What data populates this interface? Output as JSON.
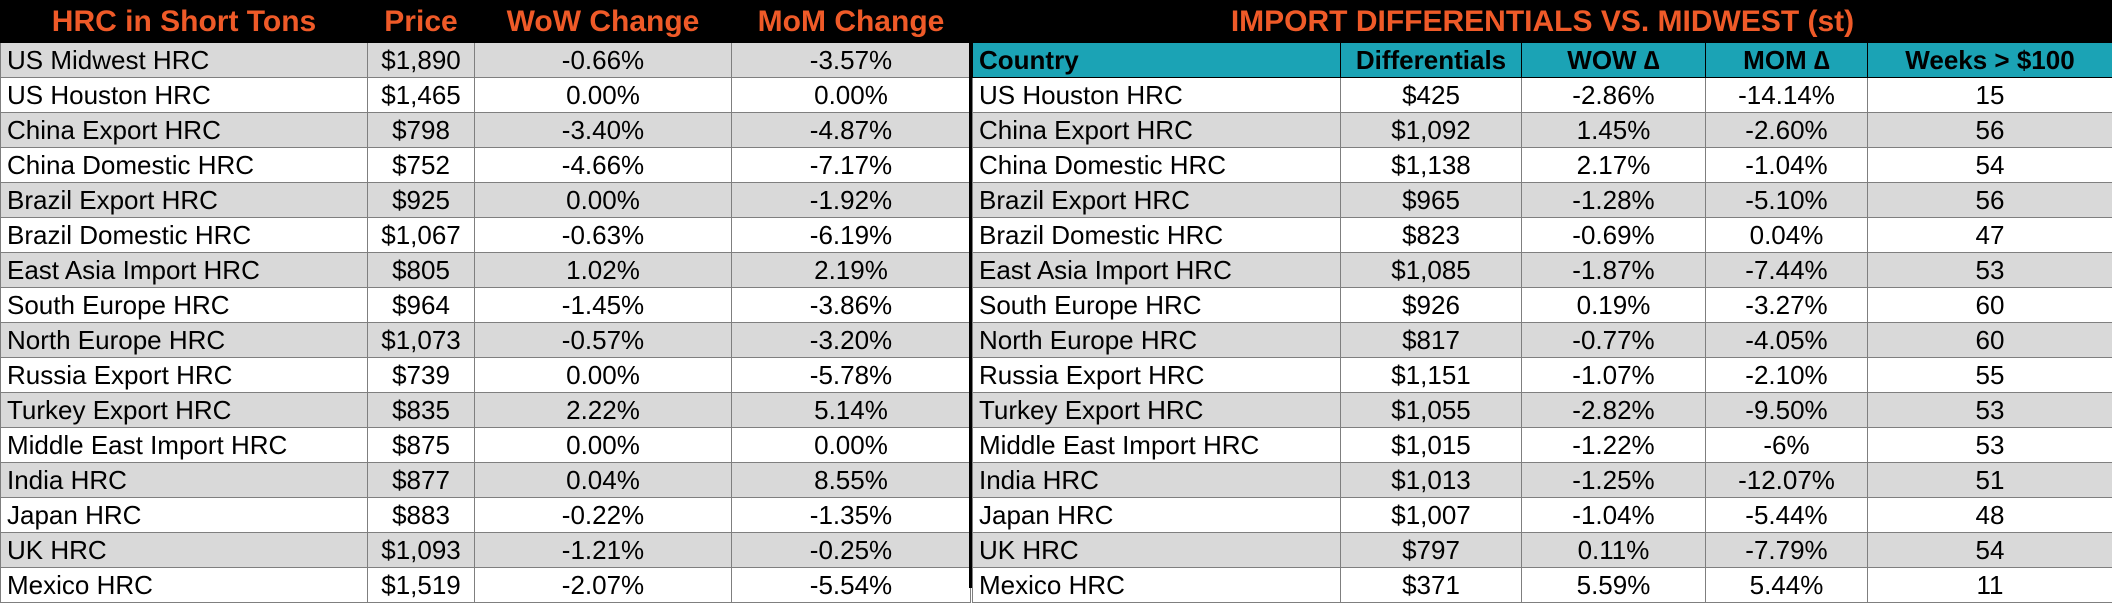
{
  "left_table": {
    "headers": [
      "HRC in Short Tons",
      "Price",
      "WoW Change",
      "MoM Change"
    ],
    "rows": [
      [
        "US Midwest HRC",
        "$1,890",
        "-0.66%",
        "-3.57%"
      ],
      [
        "US Houston HRC",
        "$1,465",
        "0.00%",
        "0.00%"
      ],
      [
        "China Export HRC",
        "$798",
        "-3.40%",
        "-4.87%"
      ],
      [
        "China Domestic HRC",
        "$752",
        "-4.66%",
        "-7.17%"
      ],
      [
        "Brazil Export HRC",
        "$925",
        "0.00%",
        "-1.92%"
      ],
      [
        "Brazil Domestic HRC",
        "$1,067",
        "-0.63%",
        "-6.19%"
      ],
      [
        "East Asia Import HRC",
        "$805",
        "1.02%",
        "2.19%"
      ],
      [
        "South Europe HRC",
        "$964",
        "-1.45%",
        "-3.86%"
      ],
      [
        "North Europe HRC",
        "$1,073",
        "-0.57%",
        "-3.20%"
      ],
      [
        "Russia Export HRC",
        "$739",
        "0.00%",
        "-5.78%"
      ],
      [
        "Turkey Export HRC",
        "$835",
        "2.22%",
        "5.14%"
      ],
      [
        "Middle East Import HRC",
        "$875",
        "0.00%",
        "0.00%"
      ],
      [
        "India HRC",
        "$877",
        "0.04%",
        "8.55%"
      ],
      [
        "Japan HRC",
        "$883",
        "-0.22%",
        "-1.35%"
      ],
      [
        "UK HRC",
        "$1,093",
        "-1.21%",
        "-0.25%"
      ],
      [
        "Mexico HRC",
        "$1,519",
        "-2.07%",
        "-5.54%"
      ]
    ]
  },
  "right_table": {
    "title": "IMPORT DIFFERENTIALS VS. MIDWEST (st)",
    "headers": [
      "Country",
      "Differentials",
      "WOW ∆",
      "MOM ∆",
      "Weeks > $100"
    ],
    "rows": [
      [
        "US Houston HRC",
        "$425",
        "-2.86%",
        "-14.14%",
        "15"
      ],
      [
        "China Export HRC",
        "$1,092",
        "1.45%",
        "-2.60%",
        "56"
      ],
      [
        "China Domestic HRC",
        "$1,138",
        "2.17%",
        "-1.04%",
        "54"
      ],
      [
        "Brazil Export HRC",
        "$965",
        "-1.28%",
        "-5.10%",
        "56"
      ],
      [
        "Brazil Domestic HRC",
        "$823",
        "-0.69%",
        "0.04%",
        "47"
      ],
      [
        "East Asia Import HRC",
        "$1,085",
        "-1.87%",
        "-7.44%",
        "53"
      ],
      [
        "South Europe HRC",
        "$926",
        "0.19%",
        "-3.27%",
        "60"
      ],
      [
        "North Europe HRC",
        "$817",
        "-0.77%",
        "-4.05%",
        "60"
      ],
      [
        "Russia Export HRC",
        "$1,151",
        "-1.07%",
        "-2.10%",
        "55"
      ],
      [
        "Turkey Export HRC",
        "$1,055",
        "-2.82%",
        "-9.50%",
        "53"
      ],
      [
        "Middle East Import HRC",
        "$1,015",
        "-1.22%",
        "-6%",
        "53"
      ],
      [
        "India HRC",
        "$1,013",
        "-1.25%",
        "-12.07%",
        "51"
      ],
      [
        "Japan HRC",
        "$1,007",
        "-1.04%",
        "-5.44%",
        "48"
      ],
      [
        "UK HRC",
        "$797",
        "0.11%",
        "-7.79%",
        "54"
      ],
      [
        "Mexico HRC",
        "$371",
        "5.59%",
        "5.44%",
        "11"
      ]
    ]
  },
  "colors": {
    "header_bg": "#000000",
    "header_text": "#ef5a28",
    "subheader_bg": "#1ba3b5",
    "row_grey": "#d9d9d9",
    "row_white": "#ffffff"
  }
}
